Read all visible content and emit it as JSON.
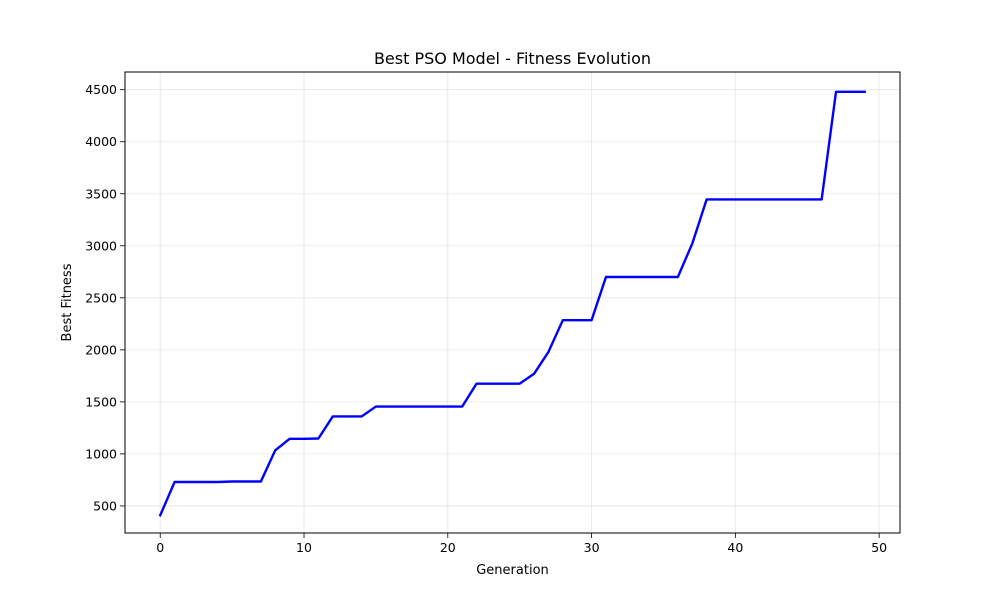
{
  "chart_data": {
    "type": "line",
    "title": "Best PSO Model - Fitness Evolution",
    "xlabel": "Generation",
    "ylabel": "Best Fitness",
    "xlim": [
      -2.45,
      51.45
    ],
    "ylim": [
      240,
      4670
    ],
    "xticks": [
      0,
      10,
      20,
      30,
      40,
      50
    ],
    "yticks": [
      500,
      1000,
      1500,
      2000,
      2500,
      3000,
      3500,
      4000,
      4500
    ],
    "grid": true,
    "series": [
      {
        "color": "#0000ff",
        "x": [
          0,
          1,
          2,
          3,
          4,
          5,
          6,
          7,
          8,
          9,
          10,
          11,
          12,
          13,
          14,
          15,
          16,
          17,
          18,
          19,
          20,
          21,
          22,
          23,
          24,
          25,
          26,
          27,
          28,
          29,
          30,
          31,
          32,
          33,
          34,
          35,
          36,
          37,
          38,
          39,
          40,
          41,
          42,
          43,
          44,
          45,
          46,
          47,
          48,
          49
        ],
        "y": [
          410,
          730,
          730,
          730,
          730,
          735,
          735,
          735,
          1035,
          1145,
          1145,
          1148,
          1360,
          1360,
          1360,
          1455,
          1455,
          1455,
          1455,
          1455,
          1455,
          1455,
          1675,
          1675,
          1675,
          1675,
          1770,
          1980,
          2285,
          2285,
          2285,
          2700,
          2700,
          2700,
          2700,
          2700,
          2700,
          3020,
          3445,
          3445,
          3445,
          3445,
          3445,
          3445,
          3445,
          3445,
          3445,
          4480,
          4480,
          4480
        ]
      }
    ]
  }
}
